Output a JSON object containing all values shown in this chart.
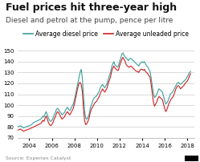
{
  "title": "Fuel prices hit three-year high",
  "subtitle": "Diesel and petrol at the pump, pence per litre",
  "legend": [
    "Average diesel price",
    "Average unleaded price"
  ],
  "diesel_color": "#3a9e9c",
  "petrol_color": "#cc2222",
  "ylim": [
    70,
    155
  ],
  "yticks": [
    70,
    80,
    90,
    100,
    110,
    120,
    130,
    140,
    150
  ],
  "xtick_years": [
    2004,
    2006,
    2008,
    2010,
    2012,
    2014,
    2016,
    2018
  ],
  "source_text": "Source: Experian Catalyst",
  "background_color": "#ffffff",
  "grid_color": "#cccccc",
  "title_fontsize": 9,
  "subtitle_fontsize": 6.5,
  "legend_fontsize": 5.5,
  "tick_fontsize": 5,
  "source_fontsize": 4.5,
  "diesel_data": [
    [
      2003.0,
      80
    ],
    [
      2003.2,
      81
    ],
    [
      2003.5,
      79
    ],
    [
      2003.7,
      80
    ],
    [
      2004.0,
      81
    ],
    [
      2004.2,
      82
    ],
    [
      2004.4,
      84
    ],
    [
      2004.6,
      85
    ],
    [
      2004.8,
      86
    ],
    [
      2005.0,
      87
    ],
    [
      2005.1,
      88
    ],
    [
      2005.2,
      90
    ],
    [
      2005.3,
      89
    ],
    [
      2005.4,
      92
    ],
    [
      2005.5,
      94
    ],
    [
      2005.6,
      91
    ],
    [
      2005.7,
      88
    ],
    [
      2005.8,
      86
    ],
    [
      2005.9,
      85
    ],
    [
      2006.0,
      86
    ],
    [
      2006.1,
      88
    ],
    [
      2006.2,
      91
    ],
    [
      2006.3,
      93
    ],
    [
      2006.4,
      96
    ],
    [
      2006.5,
      97
    ],
    [
      2006.6,
      96
    ],
    [
      2006.7,
      94
    ],
    [
      2006.8,
      93
    ],
    [
      2006.9,
      91
    ],
    [
      2007.0,
      92
    ],
    [
      2007.1,
      93
    ],
    [
      2007.2,
      95
    ],
    [
      2007.3,
      97
    ],
    [
      2007.4,
      98
    ],
    [
      2007.5,
      96
    ],
    [
      2007.6,
      95
    ],
    [
      2007.7,
      97
    ],
    [
      2007.8,
      99
    ],
    [
      2007.9,
      101
    ],
    [
      2008.0,
      105
    ],
    [
      2008.1,
      110
    ],
    [
      2008.2,
      115
    ],
    [
      2008.3,
      120
    ],
    [
      2008.4,
      125
    ],
    [
      2008.5,
      130
    ],
    [
      2008.6,
      133
    ],
    [
      2008.7,
      125
    ],
    [
      2008.8,
      110
    ],
    [
      2008.9,
      95
    ],
    [
      2009.0,
      88
    ],
    [
      2009.1,
      87
    ],
    [
      2009.2,
      89
    ],
    [
      2009.3,
      91
    ],
    [
      2009.4,
      97
    ],
    [
      2009.5,
      100
    ],
    [
      2009.6,
      103
    ],
    [
      2009.7,
      106
    ],
    [
      2009.8,
      107
    ],
    [
      2009.9,
      108
    ],
    [
      2010.0,
      109
    ],
    [
      2010.1,
      111
    ],
    [
      2010.2,
      113
    ],
    [
      2010.3,
      116
    ],
    [
      2010.4,
      118
    ],
    [
      2010.5,
      119
    ],
    [
      2010.6,
      117
    ],
    [
      2010.7,
      116
    ],
    [
      2010.8,
      118
    ],
    [
      2010.9,
      120
    ],
    [
      2011.0,
      124
    ],
    [
      2011.1,
      127
    ],
    [
      2011.2,
      130
    ],
    [
      2011.3,
      135
    ],
    [
      2011.4,
      138
    ],
    [
      2011.5,
      140
    ],
    [
      2011.6,
      137
    ],
    [
      2011.7,
      136
    ],
    [
      2011.8,
      135
    ],
    [
      2011.9,
      136
    ],
    [
      2012.0,
      140
    ],
    [
      2012.1,
      143
    ],
    [
      2012.2,
      147
    ],
    [
      2012.3,
      148
    ],
    [
      2012.4,
      146
    ],
    [
      2012.5,
      144
    ],
    [
      2012.6,
      143
    ],
    [
      2012.7,
      142
    ],
    [
      2012.8,
      141
    ],
    [
      2012.9,
      143
    ],
    [
      2013.0,
      143
    ],
    [
      2013.1,
      142
    ],
    [
      2013.2,
      141
    ],
    [
      2013.3,
      140
    ],
    [
      2013.4,
      139
    ],
    [
      2013.5,
      138
    ],
    [
      2013.6,
      137
    ],
    [
      2013.7,
      136
    ],
    [
      2013.8,
      138
    ],
    [
      2013.9,
      139
    ],
    [
      2014.0,
      140
    ],
    [
      2014.1,
      139
    ],
    [
      2014.2,
      140
    ],
    [
      2014.3,
      138
    ],
    [
      2014.4,
      136
    ],
    [
      2014.5,
      135
    ],
    [
      2014.6,
      133
    ],
    [
      2014.7,
      131
    ],
    [
      2014.8,
      125
    ],
    [
      2014.9,
      118
    ],
    [
      2015.0,
      111
    ],
    [
      2015.1,
      107
    ],
    [
      2015.2,
      108
    ],
    [
      2015.3,
      110
    ],
    [
      2015.4,
      113
    ],
    [
      2015.5,
      115
    ],
    [
      2015.6,
      114
    ],
    [
      2015.7,
      113
    ],
    [
      2015.8,
      112
    ],
    [
      2015.9,
      108
    ],
    [
      2016.0,
      104
    ],
    [
      2016.1,
      101
    ],
    [
      2016.2,
      102
    ],
    [
      2016.3,
      104
    ],
    [
      2016.4,
      107
    ],
    [
      2016.5,
      110
    ],
    [
      2016.6,
      111
    ],
    [
      2016.7,
      112
    ],
    [
      2016.8,
      114
    ],
    [
      2016.9,
      116
    ],
    [
      2017.0,
      118
    ],
    [
      2017.1,
      120
    ],
    [
      2017.2,
      121
    ],
    [
      2017.3,
      120
    ],
    [
      2017.4,
      119
    ],
    [
      2017.5,
      120
    ],
    [
      2017.6,
      121
    ],
    [
      2017.7,
      122
    ],
    [
      2017.8,
      123
    ],
    [
      2017.9,
      124
    ],
    [
      2018.0,
      126
    ],
    [
      2018.1,
      128
    ],
    [
      2018.2,
      130
    ],
    [
      2018.3,
      131
    ]
  ],
  "petrol_data": [
    [
      2003.0,
      77
    ],
    [
      2003.2,
      78
    ],
    [
      2003.5,
      76
    ],
    [
      2003.7,
      77
    ],
    [
      2004.0,
      78
    ],
    [
      2004.2,
      79
    ],
    [
      2004.4,
      80
    ],
    [
      2004.6,
      81
    ],
    [
      2004.8,
      82
    ],
    [
      2005.0,
      83
    ],
    [
      2005.1,
      84
    ],
    [
      2005.2,
      86
    ],
    [
      2005.3,
      85
    ],
    [
      2005.4,
      88
    ],
    [
      2005.5,
      90
    ],
    [
      2005.6,
      87
    ],
    [
      2005.7,
      84
    ],
    [
      2005.8,
      82
    ],
    [
      2005.9,
      81
    ],
    [
      2006.0,
      82
    ],
    [
      2006.1,
      84
    ],
    [
      2006.2,
      87
    ],
    [
      2006.3,
      89
    ],
    [
      2006.4,
      92
    ],
    [
      2006.5,
      94
    ],
    [
      2006.6,
      93
    ],
    [
      2006.7,
      91
    ],
    [
      2006.8,
      89
    ],
    [
      2006.9,
      87
    ],
    [
      2007.0,
      88
    ],
    [
      2007.1,
      89
    ],
    [
      2007.2,
      91
    ],
    [
      2007.3,
      93
    ],
    [
      2007.4,
      94
    ],
    [
      2007.5,
      92
    ],
    [
      2007.6,
      91
    ],
    [
      2007.7,
      93
    ],
    [
      2007.8,
      95
    ],
    [
      2007.9,
      97
    ],
    [
      2008.0,
      101
    ],
    [
      2008.1,
      106
    ],
    [
      2008.2,
      111
    ],
    [
      2008.3,
      116
    ],
    [
      2008.4,
      120
    ],
    [
      2008.5,
      121
    ],
    [
      2008.6,
      119
    ],
    [
      2008.7,
      113
    ],
    [
      2008.8,
      97
    ],
    [
      2008.9,
      86
    ],
    [
      2009.0,
      82
    ],
    [
      2009.1,
      83
    ],
    [
      2009.2,
      85
    ],
    [
      2009.3,
      88
    ],
    [
      2009.4,
      93
    ],
    [
      2009.5,
      96
    ],
    [
      2009.6,
      98
    ],
    [
      2009.7,
      100
    ],
    [
      2009.8,
      102
    ],
    [
      2009.9,
      103
    ],
    [
      2010.0,
      104
    ],
    [
      2010.1,
      106
    ],
    [
      2010.2,
      108
    ],
    [
      2010.3,
      111
    ],
    [
      2010.4,
      113
    ],
    [
      2010.5,
      115
    ],
    [
      2010.6,
      113
    ],
    [
      2010.7,
      112
    ],
    [
      2010.8,
      114
    ],
    [
      2010.9,
      116
    ],
    [
      2011.0,
      120
    ],
    [
      2011.1,
      123
    ],
    [
      2011.2,
      126
    ],
    [
      2011.3,
      131
    ],
    [
      2011.4,
      134
    ],
    [
      2011.5,
      136
    ],
    [
      2011.6,
      134
    ],
    [
      2011.7,
      133
    ],
    [
      2011.8,
      132
    ],
    [
      2011.9,
      132
    ],
    [
      2012.0,
      136
    ],
    [
      2012.1,
      139
    ],
    [
      2012.2,
      142
    ],
    [
      2012.3,
      144
    ],
    [
      2012.4,
      142
    ],
    [
      2012.5,
      140
    ],
    [
      2012.6,
      137
    ],
    [
      2012.7,
      136
    ],
    [
      2012.8,
      135
    ],
    [
      2012.9,
      135
    ],
    [
      2013.0,
      136
    ],
    [
      2013.1,
      135
    ],
    [
      2013.2,
      134
    ],
    [
      2013.3,
      133
    ],
    [
      2013.4,
      132
    ],
    [
      2013.5,
      131
    ],
    [
      2013.6,
      131
    ],
    [
      2013.7,
      130
    ],
    [
      2013.8,
      132
    ],
    [
      2013.9,
      133
    ],
    [
      2014.0,
      133
    ],
    [
      2014.1,
      132
    ],
    [
      2014.2,
      133
    ],
    [
      2014.3,
      131
    ],
    [
      2014.4,
      130
    ],
    [
      2014.5,
      129
    ],
    [
      2014.6,
      127
    ],
    [
      2014.7,
      126
    ],
    [
      2014.8,
      119
    ],
    [
      2014.9,
      111
    ],
    [
      2015.0,
      103
    ],
    [
      2015.1,
      99
    ],
    [
      2015.2,
      101
    ],
    [
      2015.3,
      103
    ],
    [
      2015.4,
      106
    ],
    [
      2015.5,
      108
    ],
    [
      2015.6,
      107
    ],
    [
      2015.7,
      106
    ],
    [
      2015.8,
      105
    ],
    [
      2015.9,
      101
    ],
    [
      2016.0,
      97
    ],
    [
      2016.1,
      94
    ],
    [
      2016.2,
      96
    ],
    [
      2016.3,
      99
    ],
    [
      2016.4,
      102
    ],
    [
      2016.5,
      104
    ],
    [
      2016.6,
      106
    ],
    [
      2016.7,
      107
    ],
    [
      2016.8,
      109
    ],
    [
      2016.9,
      112
    ],
    [
      2017.0,
      115
    ],
    [
      2017.1,
      117
    ],
    [
      2017.2,
      118
    ],
    [
      2017.3,
      117
    ],
    [
      2017.4,
      115
    ],
    [
      2017.5,
      116
    ],
    [
      2017.6,
      117
    ],
    [
      2017.7,
      118
    ],
    [
      2017.8,
      120
    ],
    [
      2017.9,
      121
    ],
    [
      2018.0,
      122
    ],
    [
      2018.1,
      124
    ],
    [
      2018.2,
      127
    ],
    [
      2018.3,
      129
    ]
  ]
}
